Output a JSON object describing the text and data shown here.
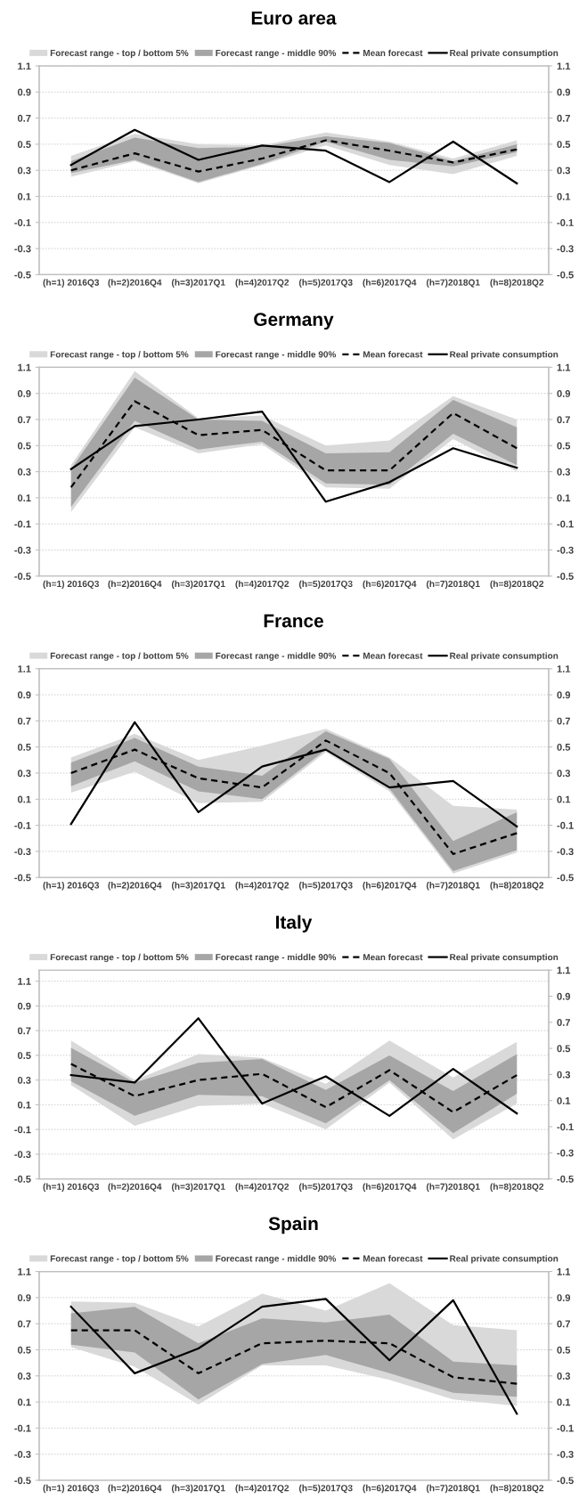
{
  "chart_data": [
    {
      "type": "line",
      "title": "Euro area",
      "categories": [
        "(h=1) 2016Q3",
        "(h=2)2016Q4",
        "(h=3)2017Q1",
        "(h=4)2017Q2",
        "(h=5)2017Q3",
        "(h=6)2017Q4",
        "(h=7)2018Q1",
        "(h=8)2018Q2"
      ],
      "ylim": [
        -0.5,
        1.1
      ],
      "yticks": [
        -0.5,
        -0.3,
        -0.1,
        0.1,
        0.3,
        0.5,
        0.7,
        0.9,
        1.1
      ],
      "y2lim": [
        -0.5,
        1.1
      ],
      "y2ticks": [
        -0.5,
        -0.3,
        -0.1,
        0.1,
        0.3,
        0.5,
        0.7,
        0.9,
        1.1
      ],
      "grid": true,
      "legend": "top",
      "series": [
        {
          "name": "Forecast range - top / bottom 5%",
          "type": "line",
          "color": "#d9d9d9",
          "values": [
            null,
            null,
            null,
            null,
            null,
            null,
            null,
            null
          ],
          "lower": [
            0.25,
            0.37,
            0.2,
            0.34,
            0.49,
            0.34,
            0.27,
            0.41
          ],
          "upper": [
            0.41,
            0.58,
            0.5,
            0.49,
            0.59,
            0.52,
            0.39,
            0.53
          ]
        },
        {
          "name": "Forecast range - middle 90%",
          "type": "line",
          "color": "#a6a6a6",
          "values": [
            null,
            null,
            null,
            null,
            null,
            null,
            null,
            null
          ],
          "lower": [
            0.28,
            0.38,
            0.21,
            0.35,
            0.52,
            0.38,
            0.33,
            0.44
          ],
          "upper": [
            0.37,
            0.55,
            0.47,
            0.48,
            0.56,
            0.51,
            0.37,
            0.5
          ]
        },
        {
          "name": "Mean forecast",
          "type": "line",
          "line_style": "dashed",
          "color": "#000000",
          "values": [
            0.3,
            0.43,
            0.29,
            0.39,
            0.53,
            0.45,
            0.36,
            0.46
          ]
        },
        {
          "name": "Real private consumption",
          "type": "line",
          "line_style": "solid",
          "color": "#000000",
          "values": [
            0.34,
            0.61,
            0.38,
            0.49,
            0.45,
            0.21,
            0.52,
            0.2
          ]
        }
      ]
    },
    {
      "type": "line",
      "title": "Germany",
      "categories": [
        "(h=1) 2016Q3",
        "(h=2)2016Q4",
        "(h=3)2017Q1",
        "(h=4)2017Q2",
        "(h=5)2017Q3",
        "(h=6)2017Q4",
        "(h=7)2018Q1",
        "(h=8)2018Q2"
      ],
      "ylim": [
        -0.5,
        1.1
      ],
      "yticks": [
        -0.5,
        -0.3,
        -0.1,
        0.1,
        0.3,
        0.5,
        0.7,
        0.9,
        1.1
      ],
      "y2lim": [
        -0.5,
        1.1
      ],
      "y2ticks": [
        -0.5,
        -0.3,
        -0.1,
        0.1,
        0.3,
        0.5,
        0.7,
        0.9,
        1.1
      ],
      "grid": true,
      "legend": "top",
      "series": [
        {
          "name": "Forecast range - top / bottom 5%",
          "type": "line",
          "color": "#d9d9d9",
          "values": [
            null,
            null,
            null,
            null,
            null,
            null,
            null,
            null
          ],
          "lower": [
            -0.01,
            0.64,
            0.44,
            0.51,
            0.18,
            0.17,
            0.55,
            0.3
          ],
          "upper": [
            0.35,
            1.07,
            0.71,
            0.73,
            0.5,
            0.54,
            0.88,
            0.7
          ]
        },
        {
          "name": "Forecast range - middle 90%",
          "type": "line",
          "color": "#a6a6a6",
          "values": [
            null,
            null,
            null,
            null,
            null,
            null,
            null,
            null
          ],
          "lower": [
            0.03,
            0.69,
            0.47,
            0.53,
            0.21,
            0.2,
            0.59,
            0.35
          ],
          "upper": [
            0.32,
            1.02,
            0.7,
            0.69,
            0.44,
            0.45,
            0.85,
            0.64
          ]
        },
        {
          "name": "Mean forecast",
          "type": "line",
          "line_style": "dashed",
          "color": "#000000",
          "values": [
            0.18,
            0.84,
            0.58,
            0.62,
            0.31,
            0.31,
            0.75,
            0.48
          ]
        },
        {
          "name": "Real private consumption",
          "type": "line",
          "line_style": "solid",
          "color": "#000000",
          "values": [
            0.32,
            0.65,
            0.7,
            0.76,
            0.07,
            0.22,
            0.48,
            0.33
          ]
        }
      ]
    },
    {
      "type": "line",
      "title": "France",
      "categories": [
        "(h=1) 2016Q3",
        "(h=2)2016Q4",
        "(h=3)2017Q1",
        "(h=4)2017Q2",
        "(h=5)2017Q3",
        "(h=6)2017Q4",
        "(h=7)2018Q1",
        "(h=8)2018Q2"
      ],
      "ylim": [
        -0.5,
        1.1
      ],
      "yticks": [
        -0.5,
        -0.3,
        -0.1,
        0.1,
        0.3,
        0.5,
        0.7,
        0.9,
        1.1
      ],
      "y2lim": [
        -0.5,
        1.1
      ],
      "y2ticks": [
        -0.5,
        -0.3,
        -0.1,
        0.1,
        0.3,
        0.5,
        0.7,
        0.9,
        1.1
      ],
      "grid": true,
      "legend": "top",
      "series": [
        {
          "name": "Forecast range - top / bottom 5%",
          "type": "line",
          "color": "#d9d9d9",
          "values": [
            null,
            null,
            null,
            null,
            null,
            null,
            null,
            null
          ],
          "lower": [
            0.15,
            0.31,
            0.07,
            0.08,
            0.46,
            0.16,
            -0.47,
            -0.31
          ],
          "upper": [
            0.42,
            0.6,
            0.4,
            0.51,
            0.64,
            0.42,
            0.05,
            0.02
          ]
        },
        {
          "name": "Forecast range - middle 90%",
          "type": "line",
          "color": "#a6a6a6",
          "values": [
            null,
            null,
            null,
            null,
            null,
            null,
            null,
            null
          ],
          "lower": [
            0.2,
            0.39,
            0.16,
            0.1,
            0.48,
            0.18,
            -0.45,
            -0.29
          ],
          "upper": [
            0.38,
            0.57,
            0.35,
            0.28,
            0.62,
            0.41,
            -0.22,
            0.0
          ]
        },
        {
          "name": "Mean forecast",
          "type": "line",
          "line_style": "dashed",
          "color": "#000000",
          "values": [
            0.3,
            0.48,
            0.26,
            0.19,
            0.55,
            0.3,
            -0.32,
            -0.16
          ]
        },
        {
          "name": "Real private consumption",
          "type": "line",
          "line_style": "solid",
          "color": "#000000",
          "values": [
            -0.09,
            0.69,
            0.0,
            0.35,
            0.48,
            0.19,
            0.24,
            -0.11
          ]
        }
      ]
    },
    {
      "type": "line",
      "title": "Italy",
      "categories": [
        "(h=1) 2016Q3",
        "(h=2)2016Q4",
        "(h=3)2017Q1",
        "(h=4)2017Q2",
        "(h=5)2017Q3",
        "(h=6)2017Q4",
        "(h=7)2018Q1",
        "(h=8)2018Q2"
      ],
      "ylim": [
        -0.5,
        1.19
      ],
      "yticks": [
        -0.5,
        -0.3,
        -0.1,
        0.1,
        0.3,
        0.5,
        0.7,
        0.9,
        1.1
      ],
      "y2lim": [
        -0.5,
        1.1
      ],
      "y2ticks": [
        -0.5,
        -0.3,
        -0.1,
        0.1,
        0.3,
        0.5,
        0.7,
        0.9,
        1.1
      ],
      "grid": true,
      "legend": "top",
      "series": [
        {
          "name": "Forecast range - top / bottom 5%",
          "type": "line",
          "color": "#d9d9d9",
          "values": [
            null,
            null,
            null,
            null,
            null,
            null,
            null,
            null
          ],
          "lower": [
            0.26,
            -0.07,
            0.09,
            0.11,
            -0.1,
            0.28,
            -0.18,
            0.11
          ],
          "upper": [
            0.62,
            0.3,
            0.51,
            0.48,
            0.27,
            0.62,
            0.32,
            0.61
          ]
        },
        {
          "name": "Forecast range - middle 90%",
          "type": "line",
          "color": "#a6a6a6",
          "values": [
            null,
            null,
            null,
            null,
            null,
            null,
            null,
            null
          ],
          "lower": [
            0.29,
            0.01,
            0.18,
            0.17,
            -0.05,
            0.3,
            -0.13,
            0.19
          ],
          "upper": [
            0.56,
            0.28,
            0.44,
            0.47,
            0.22,
            0.5,
            0.21,
            0.51
          ]
        },
        {
          "name": "Mean forecast",
          "type": "line",
          "line_style": "dashed",
          "color": "#000000",
          "values": [
            0.43,
            0.17,
            0.3,
            0.35,
            0.08,
            0.38,
            0.04,
            0.34
          ]
        },
        {
          "name": "Real private consumption",
          "type": "line",
          "line_style": "solid",
          "color": "#000000",
          "values": [
            0.34,
            0.28,
            0.8,
            0.11,
            0.33,
            0.01,
            0.39,
            0.03
          ]
        }
      ]
    },
    {
      "type": "line",
      "title": "Spain",
      "categories": [
        "(h=1) 2016Q3",
        "(h=2)2016Q4",
        "(h=3)2017Q1",
        "(h=4)2017Q2",
        "(h=5)2017Q3",
        "(h=6)2017Q4",
        "(h=7)2018Q1",
        "(h=8)2018Q2"
      ],
      "ylim": [
        -0.5,
        1.1
      ],
      "yticks": [
        -0.5,
        -0.3,
        -0.1,
        0.1,
        0.3,
        0.5,
        0.7,
        0.9,
        1.1
      ],
      "y2lim": [
        -0.5,
        1.1
      ],
      "y2ticks": [
        -0.5,
        -0.3,
        -0.1,
        0.1,
        0.3,
        0.5,
        0.7,
        0.9,
        1.1
      ],
      "grid": true,
      "legend": "top",
      "series": [
        {
          "name": "Forecast range - top / bottom 5%",
          "type": "line",
          "color": "#d9d9d9",
          "values": [
            null,
            null,
            null,
            null,
            null,
            null,
            null,
            null
          ],
          "lower": [
            0.52,
            0.37,
            0.08,
            0.38,
            0.38,
            0.27,
            0.12,
            0.07
          ],
          "upper": [
            0.87,
            0.86,
            0.68,
            0.93,
            0.8,
            1.01,
            0.69,
            0.65
          ]
        },
        {
          "name": "Forecast range - middle 90%",
          "type": "line",
          "color": "#a6a6a6",
          "values": [
            null,
            null,
            null,
            null,
            null,
            null,
            null,
            null
          ],
          "lower": [
            0.54,
            0.48,
            0.12,
            0.39,
            0.46,
            0.32,
            0.17,
            0.14
          ],
          "upper": [
            0.78,
            0.83,
            0.55,
            0.74,
            0.71,
            0.77,
            0.41,
            0.38
          ]
        },
        {
          "name": "Mean forecast",
          "type": "line",
          "line_style": "dashed",
          "color": "#000000",
          "values": [
            0.65,
            0.65,
            0.32,
            0.55,
            0.57,
            0.55,
            0.29,
            0.24
          ]
        },
        {
          "name": "Real private consumption",
          "type": "line",
          "line_style": "solid",
          "color": "#000000",
          "values": [
            0.83,
            0.32,
            0.51,
            0.83,
            0.89,
            0.42,
            0.88,
            0.01
          ]
        }
      ]
    }
  ]
}
